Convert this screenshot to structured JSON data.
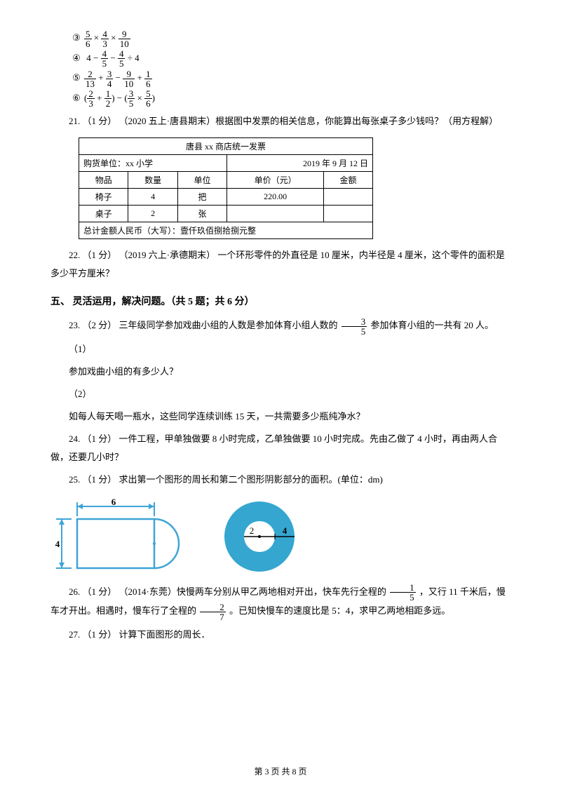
{
  "math": {
    "lines": [
      {
        "marker": "③",
        "expr": [
          "5/6",
          "×",
          "4/3",
          "×",
          "9/10"
        ]
      },
      {
        "marker": "④",
        "expr": [
          "4",
          "−",
          "4/5",
          "−",
          "4/5",
          "÷",
          "4"
        ]
      },
      {
        "marker": "⑤",
        "expr": [
          "2/13",
          "+",
          "3/4",
          "−",
          "9/10",
          "+",
          "1/6"
        ]
      },
      {
        "marker": "⑥",
        "expr": [
          "(",
          "2/3",
          "+",
          "1/2",
          ")",
          "−",
          "(",
          "3/5",
          "×",
          "5/6",
          ")"
        ]
      }
    ]
  },
  "q21": {
    "text": "21. （1 分） （2020 五上·唐县期末）根据图中发票的相关信息，你能算出每张桌子多少钱吗？（用方程解）"
  },
  "invoice": {
    "title": "唐县 xx 商店统一发票",
    "buyer_label": "购货单位：xx 小学",
    "date": "2019 年 9 月 12 日",
    "cols": [
      "物品",
      "数量",
      "单位",
      "单价（元）",
      "金额"
    ],
    "rows": [
      [
        "椅子",
        "4",
        "把",
        "220.00",
        ""
      ],
      [
        "桌子",
        "2",
        "张",
        "",
        ""
      ]
    ],
    "total_label": "总计金额人民币（大写）：壹仟玖佰捌拾捌元整"
  },
  "q22": {
    "text": "22. （1 分） （2019 六上·承德期末） 一个环形零件的外直径是 10 厘米，内半径是 4 厘米，这个零件的面积是多少平方厘米？"
  },
  "section5": "五、 灵活运用，解决问题。（共 5 题；共 6 分）",
  "q23": {
    "text_a": "23. （2 分） 三年级同学参加戏曲小组的人数是参加体育小组人数的 ",
    "frac": {
      "num": "3",
      "den": "5"
    },
    "text_b": "  参加体育小组的一共有 20 人。",
    "p1_label": "（1）",
    "p1_text": "参加戏曲小组的有多少人？",
    "p2_label": "（2）",
    "p2_text": "如每人每天喝一瓶水，这些同学连续训练 15 天，一共需要多少瓶纯净水？"
  },
  "q24": {
    "text": "24. （1 分） 一件工程，甲单独做要 8 小时完成，乙单独做要 10 小时完成。先由乙做了 4 小时，再由两人合做，还要几小时？"
  },
  "q25": {
    "text": "25. （1 分） 求出第一个图形的周长和第二个图形阴影部分的面积。(单位：dm)"
  },
  "figs": {
    "fig1": {
      "width_label": "6",
      "height_label": "4",
      "stroke": "#3fa4d6",
      "fill": "#bce2f2",
      "accent": "#4aa3c7"
    },
    "fig2": {
      "outer_r": 50,
      "inner_r": 22,
      "inner_label": "2",
      "outer_label": "4",
      "fill": "#34a6d0",
      "bg": "#ffffff"
    }
  },
  "q26": {
    "text_a": "26. （1 分） （2014·东莞）快慢两车分别从甲乙两地相对开出，快车先行全程的 ",
    "frac1": {
      "num": "1",
      "den": "5"
    },
    "text_b": " ，又行 11 千米后，慢车才开出。相遇时，慢车行了全程的 ",
    "frac2": {
      "num": "2",
      "den": "7"
    },
    "text_c": " 。已知快慢车的速度比是 5：4，求甲乙两地相距多远。"
  },
  "q27": {
    "text": "27. （1 分） 计算下面图形的周长．"
  },
  "footer": "第 3 页 共 8 页"
}
